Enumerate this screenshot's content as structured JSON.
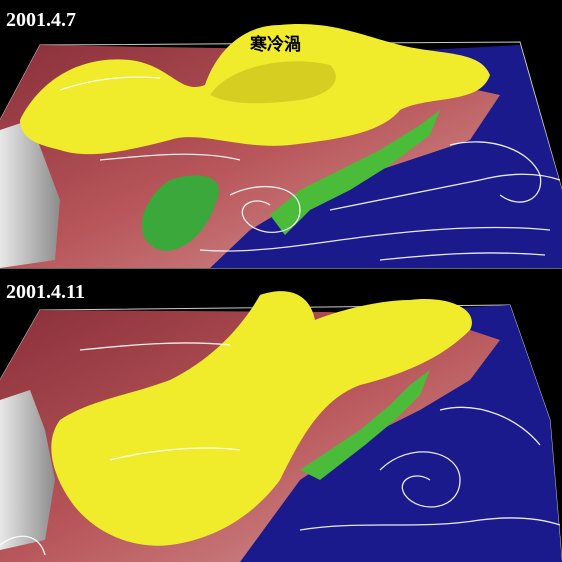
{
  "panels": [
    {
      "date": "2001.4.7",
      "label": "寒冷渦"
    },
    {
      "date": "2001.4.11"
    }
  ]
}
